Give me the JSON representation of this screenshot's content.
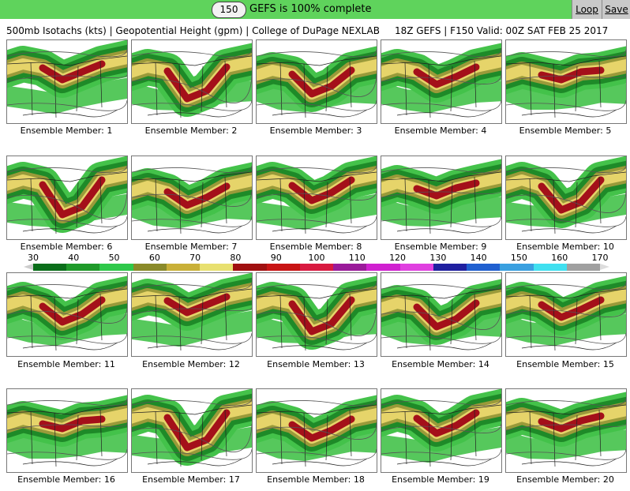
{
  "topbar": {
    "forecast_hour": "150",
    "status": "GEFS is 100% complete",
    "loop_label": "Loop",
    "save_label": "Save"
  },
  "header": {
    "left": "500mb Isotachs (kts) | Geopotential Height (gpm) | College of DuPage NEXLAB",
    "right": "18Z GEFS | F150 Valid: 00Z SAT FEB 25 2017"
  },
  "members": [
    {
      "caption": "Ensemble Member: 1"
    },
    {
      "caption": "Ensemble Member: 2"
    },
    {
      "caption": "Ensemble Member: 3"
    },
    {
      "caption": "Ensemble Member: 4"
    },
    {
      "caption": "Ensemble Member: 5"
    },
    {
      "caption": "Ensemble Member: 6"
    },
    {
      "caption": "Ensemble Member: 7"
    },
    {
      "caption": "Ensemble Member: 8"
    },
    {
      "caption": "Ensemble Member: 9"
    },
    {
      "caption": "Ensemble Member: 10"
    },
    {
      "caption": "Ensemble Member: 11"
    },
    {
      "caption": "Ensemble Member: 12"
    },
    {
      "caption": "Ensemble Member: 13"
    },
    {
      "caption": "Ensemble Member: 14"
    },
    {
      "caption": "Ensemble Member: 15"
    },
    {
      "caption": "Ensemble Member: 16"
    },
    {
      "caption": "Ensemble Member: 17"
    },
    {
      "caption": "Ensemble Member: 18"
    },
    {
      "caption": "Ensemble Member: 19"
    },
    {
      "caption": "Ensemble Member: 20"
    }
  ],
  "color_scale": {
    "labels": [
      "30",
      "40",
      "50",
      "60",
      "70",
      "80",
      "90",
      "100",
      "110",
      "120",
      "130",
      "140",
      "150",
      "160",
      "170"
    ],
    "colors": [
      "#0a6e1a",
      "#1f9a2a",
      "#2fc84a",
      "#8a8a2a",
      "#c9b038",
      "#e8e070",
      "#a01010",
      "#c81414",
      "#d81a40",
      "#9a1a9a",
      "#d020d0",
      "#e040e0",
      "#2020a0",
      "#2060d0",
      "#3aa0e0",
      "#40e0f0",
      "#a0a0a0"
    ]
  },
  "map_colors": {
    "green_dark": "#1e8a28",
    "green_light": "#44c24a",
    "olive": "#9a9a3a",
    "yellow": "#e6d46a",
    "red": "#a4101a"
  }
}
